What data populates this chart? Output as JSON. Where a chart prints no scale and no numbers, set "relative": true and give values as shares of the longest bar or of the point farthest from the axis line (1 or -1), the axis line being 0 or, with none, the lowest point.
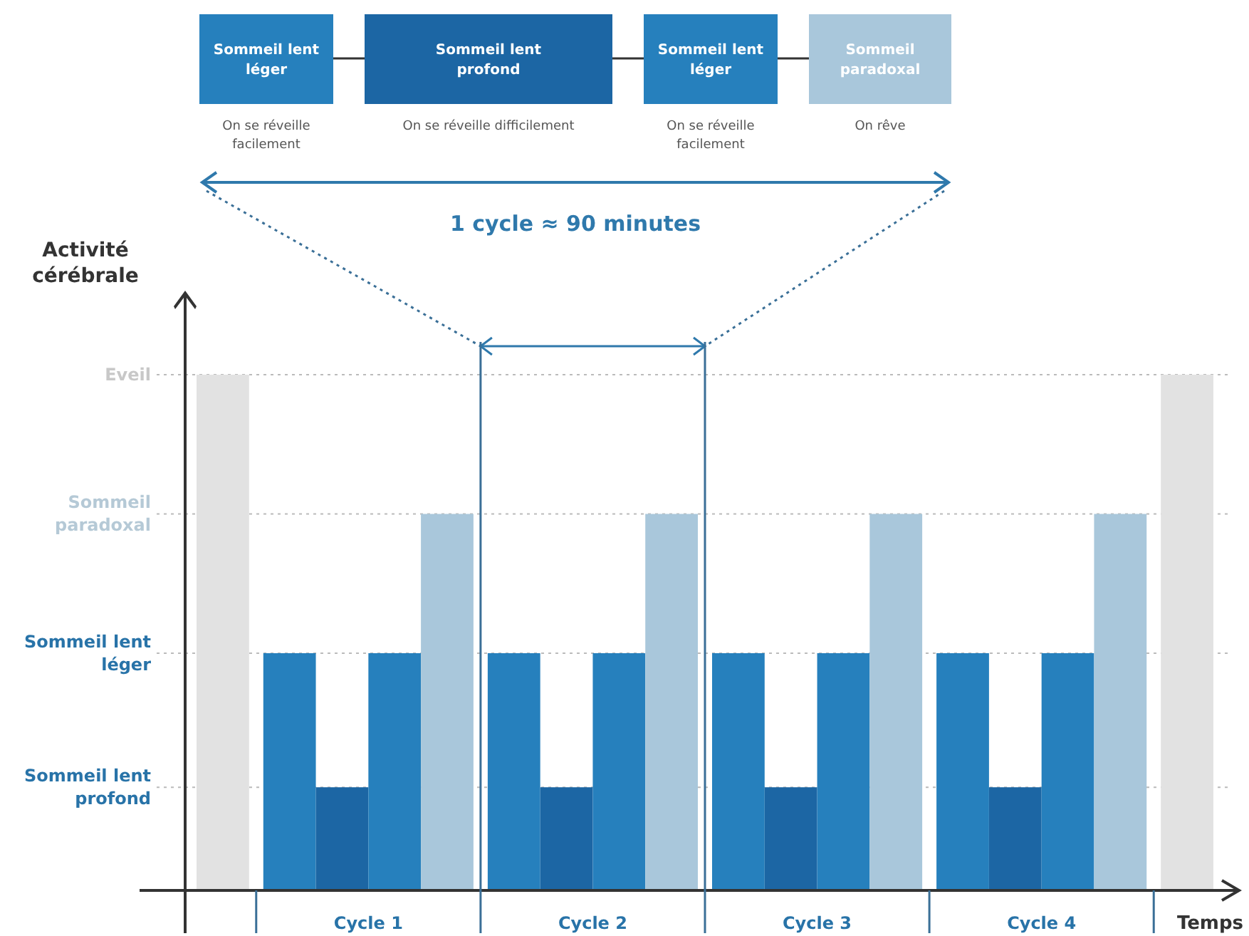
{
  "chart_data": {
    "type": "bar",
    "xlabel": "Temps",
    "ylabel": "Activité cérébrale",
    "relative": true,
    "categories": [
      null,
      "Cycle 1",
      "Cycle 2",
      "Cycle 3",
      "Cycle 4",
      null
    ],
    "series": [
      {
        "color": "#e2e2e2",
        "values": [
          1,
          null,
          null,
          null,
          null,
          null
        ]
      },
      {
        "color": "#2680bd",
        "values": [
          null,
          0.46,
          0.46,
          0.46,
          0.46,
          null
        ]
      },
      {
        "color": "#1c66a4",
        "values": [
          null,
          0.2,
          0.2,
          0.2,
          0.2,
          null
        ]
      },
      {
        "color": "#2680bd",
        "values": [
          null,
          0.46,
          0.46,
          0.46,
          0.46,
          null
        ]
      },
      {
        "color": "#a9c7db",
        "values": [
          null,
          0.73,
          0.73,
          0.73,
          0.73,
          null
        ]
      },
      {
        "color": "#e2e2e2",
        "values": [
          null,
          null,
          null,
          null,
          null,
          1
        ]
      }
    ],
    "ref_lines": [
      {
        "axis": "y",
        "value": 0.2,
        "label": "Sommeil lent profond",
        "color": "#bbbbbb",
        "line_style": "dotted"
      },
      {
        "axis": "y",
        "value": 0.46,
        "label": "Sommeil lent léger",
        "color": "#bbbbbb",
        "line_style": "dotted"
      },
      {
        "axis": "y",
        "value": 0.73,
        "label": "Sommeil paradoxal",
        "color": "#bbbbbb",
        "line_style": "dotted"
      },
      {
        "axis": "y",
        "value": 1,
        "label": "Eveil",
        "color": "#bbbbbb",
        "line_style": "dotted"
      }
    ],
    "annotations": [
      "Sommeil lent léger",
      "Sommeil lent profond",
      "Sommeil lent léger",
      "Sommeil paradoxal",
      "On se réveille facilement",
      "On se réveille difficilement",
      "On se réveille facilement",
      "On rêve",
      "1 cycle ≈ 90 minutes"
    ]
  }
}
